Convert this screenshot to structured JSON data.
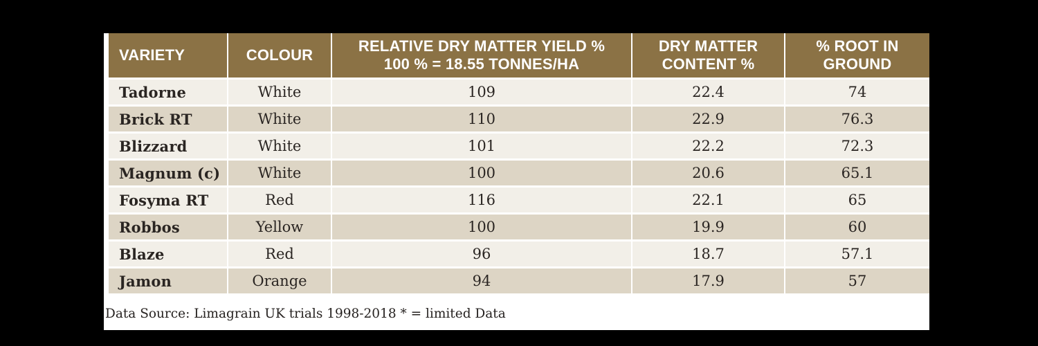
{
  "colors": {
    "canvas_background": "#000000",
    "page_background": "#ffffff",
    "header_background": "#8b7245",
    "header_text": "#ffffff",
    "row_light": "#f2efe8",
    "row_dark": "#ddd5c5",
    "body_text": "#2a2522"
  },
  "table": {
    "header": {
      "variety": "VARIETY",
      "colour": "COLOUR",
      "yield_line1": "RELATIVE DRY MATTER YIELD %",
      "yield_line2": "100 % = 18.55 TONNES/HA",
      "dry_matter_line1": "DRY MATTER",
      "dry_matter_line2": "CONTENT %",
      "root_line1": "% ROOT IN",
      "root_line2": "GROUND"
    },
    "rows": [
      {
        "variety": "Tadorne",
        "colour": "White",
        "yield": "109",
        "dry_matter": "22.4",
        "root": "74"
      },
      {
        "variety": "Brick RT",
        "colour": "White",
        "yield": "110",
        "dry_matter": "22.9",
        "root": "76.3"
      },
      {
        "variety": "Blizzard",
        "colour": "White",
        "yield": "101",
        "dry_matter": "22.2",
        "root": "72.3"
      },
      {
        "variety": "Magnum (c)",
        "colour": "White",
        "yield": "100",
        "dry_matter": "20.6",
        "root": "65.1"
      },
      {
        "variety": "Fosyma RT",
        "colour": "Red",
        "yield": "116",
        "dry_matter": "22.1",
        "root": "65"
      },
      {
        "variety": "Robbos",
        "colour": "Yellow",
        "yield": "100",
        "dry_matter": "19.9",
        "root": "60"
      },
      {
        "variety": "Blaze",
        "colour": "Red",
        "yield": "96",
        "dry_matter": "18.7",
        "root": "57.1"
      },
      {
        "variety": "Jamon",
        "colour": "Orange",
        "yield": "94",
        "dry_matter": "17.9",
        "root": "57"
      }
    ]
  },
  "footer": {
    "note": "Data Source: Limagrain UK trials 1998-2018 * = limited Data"
  }
}
